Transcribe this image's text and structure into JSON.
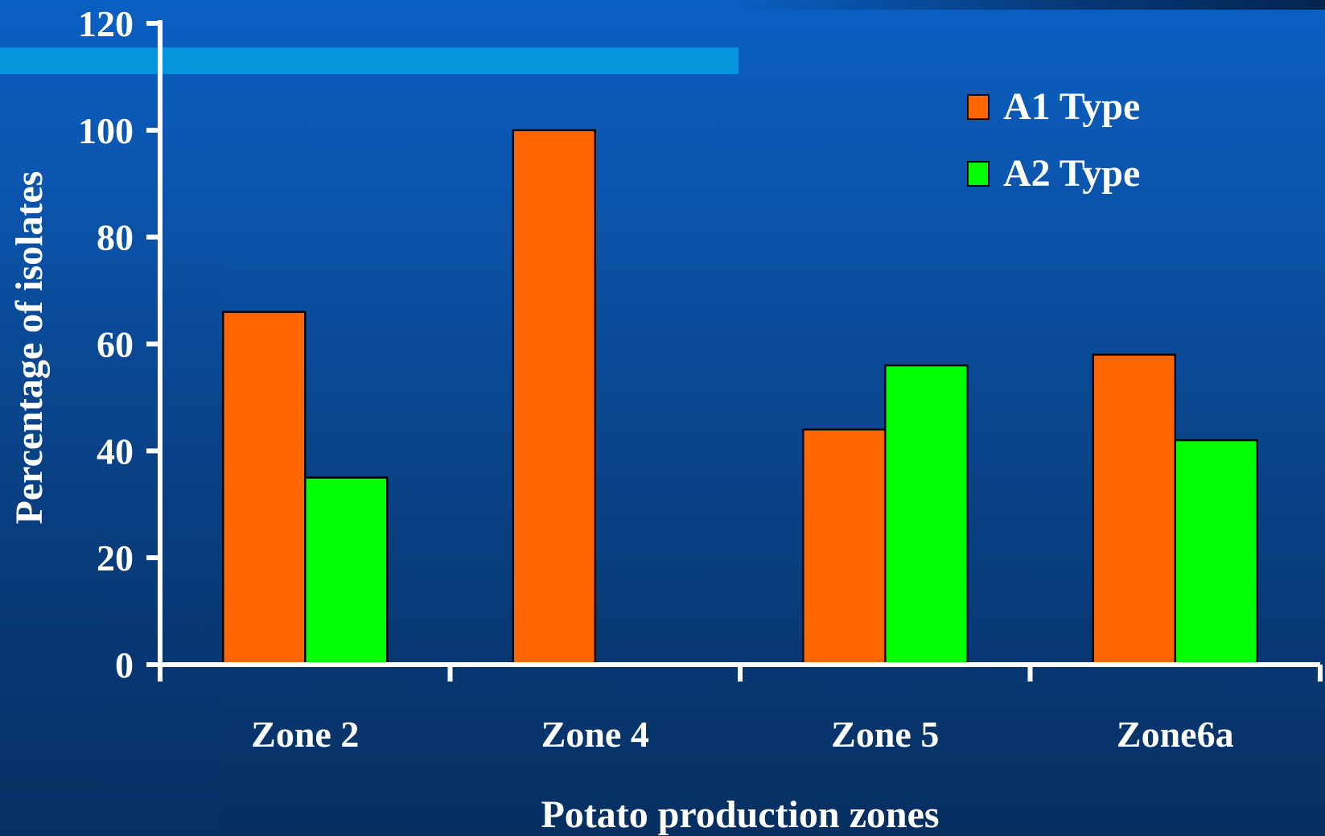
{
  "colors": {
    "a1": "#ff6600",
    "a2": "#00ff00",
    "axis": "#ffffff",
    "bar_outline": "#000000"
  },
  "chart_data": {
    "type": "bar",
    "categories": [
      "Zone 2",
      "Zone 4",
      "Zone 5",
      "Zone6a"
    ],
    "series": [
      {
        "name": "A1 Type",
        "values": [
          66,
          100,
          44,
          58
        ],
        "color": "#ff6600"
      },
      {
        "name": "A2 Type",
        "values": [
          35,
          0,
          56,
          42
        ],
        "color": "#00ff00"
      }
    ],
    "xlabel": "Potato production zones",
    "ylabel": "Percentage of isolates",
    "ylim": [
      0,
      120
    ],
    "yticks": [
      "0",
      "20",
      "40",
      "60",
      "80",
      "100",
      "120"
    ],
    "grid": false,
    "legend_position": "top-right"
  }
}
